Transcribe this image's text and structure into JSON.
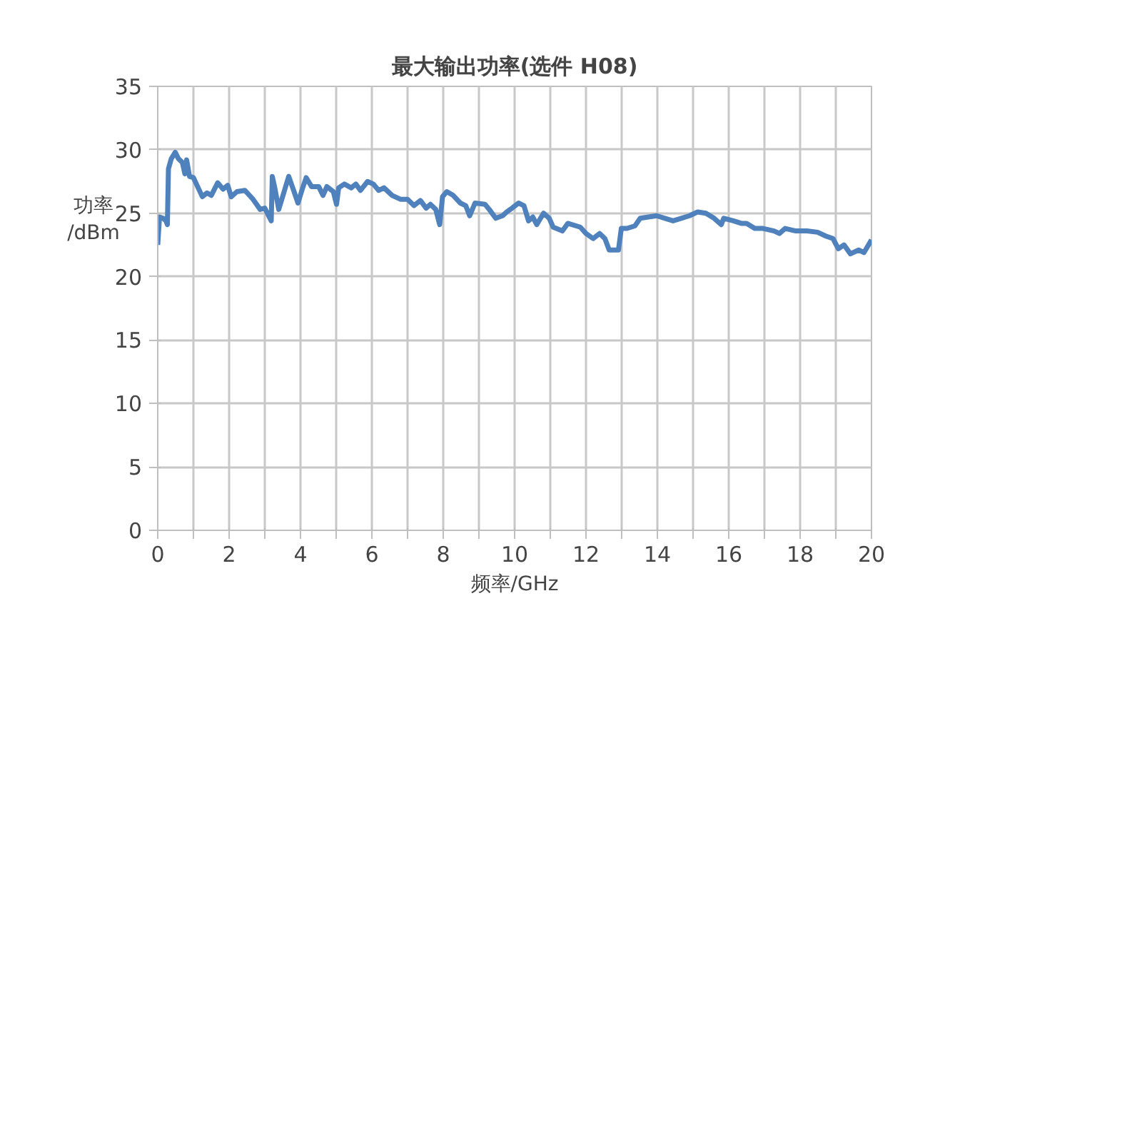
{
  "chart_data": {
    "type": "line",
    "title": "最大输出功率(选件 H08)",
    "xlabel": "频率/GHz",
    "ylabel": "功率\n/dBm",
    "xlim": [
      0,
      20
    ],
    "ylim": [
      0,
      35
    ],
    "xticks": [
      0,
      {
        "value": 1,
        "label": null
      },
      2,
      {
        "value": 3,
        "label": null
      },
      4,
      {
        "value": 5,
        "label": null
      },
      6,
      {
        "value": 7,
        "label": null
      },
      8,
      {
        "value": 9,
        "label": null
      },
      10,
      {
        "value": 11,
        "label": null
      },
      12,
      {
        "value": 13,
        "label": null
      },
      14,
      {
        "value": 15,
        "label": null
      },
      16,
      {
        "value": 17,
        "label": null
      },
      18,
      {
        "value": 19,
        "label": null
      },
      20
    ],
    "yticks": [
      0,
      5,
      10,
      15,
      20,
      25,
      30,
      35
    ],
    "grid": true,
    "line_style": "solid",
    "marker": "none",
    "series": [
      {
        "color": "#4f81bd",
        "x": [
          0,
          0.05,
          0.15,
          0.23,
          0.27,
          0.3,
          0.38,
          0.49,
          0.58,
          0.69,
          0.76,
          0.81,
          0.89,
          1.0,
          1.25,
          1.38,
          1.5,
          1.68,
          1.83,
          1.96,
          2.06,
          2.22,
          2.44,
          2.67,
          2.87,
          3.0,
          3.18,
          3.21,
          3.28,
          3.39,
          3.51,
          3.67,
          3.82,
          3.93,
          4.05,
          4.16,
          4.31,
          4.51,
          4.63,
          4.74,
          4.92,
          5.01,
          5.07,
          5.23,
          5.42,
          5.55,
          5.68,
          5.88,
          6.04,
          6.19,
          6.34,
          6.57,
          6.8,
          7.0,
          7.18,
          7.36,
          7.52,
          7.64,
          7.79,
          7.9,
          7.98,
          8.1,
          8.28,
          8.48,
          8.63,
          8.74,
          8.89,
          9.17,
          9.29,
          9.47,
          9.66,
          9.78,
          9.93,
          10.11,
          10.26,
          10.39,
          10.51,
          10.62,
          10.81,
          10.97,
          11.08,
          11.34,
          11.49,
          11.84,
          12.0,
          12.2,
          12.38,
          12.53,
          12.65,
          12.91,
          12.99,
          13.15,
          13.37,
          13.52,
          13.75,
          13.98,
          14.21,
          14.44,
          14.67,
          14.9,
          15.13,
          15.36,
          15.59,
          15.79,
          15.86,
          16.13,
          16.35,
          16.5,
          16.73,
          16.96,
          17.27,
          17.42,
          17.58,
          17.88,
          18.19,
          18.49,
          18.72,
          18.92,
          19.07,
          19.23,
          19.41,
          19.64,
          19.79,
          20.0
        ],
        "values": [
          22.5,
          24.7,
          24.6,
          24.4,
          24.1,
          28.5,
          29.3,
          29.8,
          29.3,
          29.0,
          28.1,
          29.2,
          27.9,
          27.8,
          26.3,
          26.6,
          26.4,
          27.4,
          26.9,
          27.2,
          26.3,
          26.7,
          26.8,
          26.1,
          25.3,
          25.4,
          24.4,
          27.9,
          27.0,
          25.3,
          26.4,
          27.9,
          26.7,
          25.8,
          26.9,
          27.8,
          27.1,
          27.1,
          26.4,
          27.1,
          26.7,
          25.7,
          27.0,
          27.3,
          27.0,
          27.3,
          26.8,
          27.5,
          27.3,
          26.8,
          27.0,
          26.4,
          26.1,
          26.1,
          25.6,
          26.0,
          25.4,
          25.7,
          25.3,
          24.1,
          26.3,
          26.7,
          26.4,
          25.8,
          25.6,
          24.8,
          25.8,
          25.7,
          25.3,
          24.6,
          24.8,
          25.1,
          25.4,
          25.8,
          25.6,
          24.4,
          24.7,
          24.1,
          25.0,
          24.6,
          23.9,
          23.6,
          24.2,
          23.9,
          23.4,
          23.0,
          23.4,
          23.0,
          22.1,
          22.1,
          23.8,
          23.8,
          24.0,
          24.6,
          24.7,
          24.8,
          24.6,
          24.4,
          24.6,
          24.8,
          25.1,
          25.0,
          24.6,
          24.1,
          24.6,
          24.4,
          24.2,
          24.2,
          23.8,
          23.8,
          23.6,
          23.4,
          23.8,
          23.6,
          23.6,
          23.5,
          23.2,
          23.0,
          22.2,
          22.5,
          21.8,
          22.1,
          21.9,
          22.9
        ]
      }
    ]
  }
}
